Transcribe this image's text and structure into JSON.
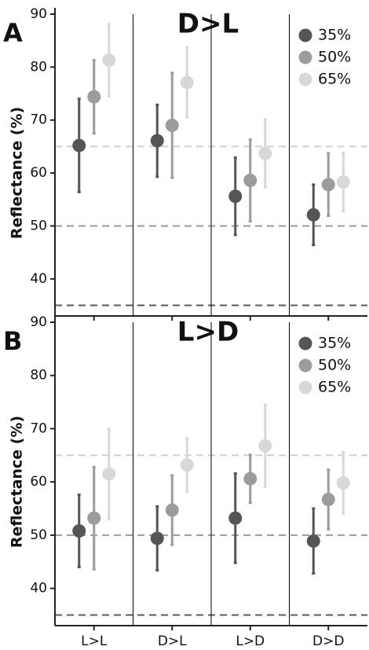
{
  "chart_data": [
    {
      "type": "pointrange",
      "panel_label": "A",
      "title": "D>L",
      "y_label": "Reflectance (%)",
      "categories": [
        null,
        null,
        null,
        null
      ],
      "ylim": [
        33,
        90
      ],
      "yticks": [
        40,
        50,
        60,
        70,
        80,
        90
      ],
      "reference_lines": [
        {
          "value": 65,
          "color": "#d0d0d0"
        },
        {
          "value": 50,
          "color": "#9a9a9a"
        },
        {
          "value": 35,
          "color": "#5a5a5a"
        }
      ],
      "series": [
        {
          "name": "35%",
          "color": "#555555",
          "values": [
            65.2,
            66.1,
            55.6,
            52.1
          ],
          "errors": [
            8.8,
            6.8,
            7.3,
            5.7
          ]
        },
        {
          "name": "50%",
          "color": "#9c9c9c",
          "values": [
            74.4,
            69.0,
            58.6,
            57.8
          ],
          "errors": [
            6.9,
            9.9,
            7.7,
            5.9
          ]
        },
        {
          "name": "65%",
          "color": "#d8d8d8",
          "values": [
            81.3,
            77.1,
            63.7,
            58.3
          ],
          "errors": [
            6.8,
            6.6,
            6.4,
            5.5
          ]
        }
      ]
    },
    {
      "type": "pointrange",
      "panel_label": "B",
      "title": "L>D",
      "y_label": "Reflectance (%)",
      "categories": [
        "L>L",
        "D>L",
        "L>D",
        "D>D"
      ],
      "ylim": [
        33,
        90
      ],
      "yticks": [
        40,
        50,
        60,
        70,
        80,
        90
      ],
      "reference_lines": [
        {
          "value": 65,
          "color": "#d0d0d0"
        },
        {
          "value": 50,
          "color": "#9a9a9a"
        },
        {
          "value": 35,
          "color": "#5a5a5a"
        }
      ],
      "series": [
        {
          "name": "35%",
          "color": "#555555",
          "values": [
            50.8,
            49.4,
            53.2,
            48.9
          ],
          "errors": [
            6.8,
            6.0,
            8.4,
            6.1
          ]
        },
        {
          "name": "50%",
          "color": "#9c9c9c",
          "values": [
            53.2,
            54.7,
            60.6,
            56.7
          ],
          "errors": [
            9.6,
            6.5,
            4.5,
            5.6
          ]
        },
        {
          "name": "65%",
          "color": "#d8d8d8",
          "values": [
            61.5,
            63.2,
            66.8,
            59.8
          ],
          "errors": [
            8.5,
            5.0,
            7.7,
            5.8
          ]
        }
      ]
    }
  ]
}
